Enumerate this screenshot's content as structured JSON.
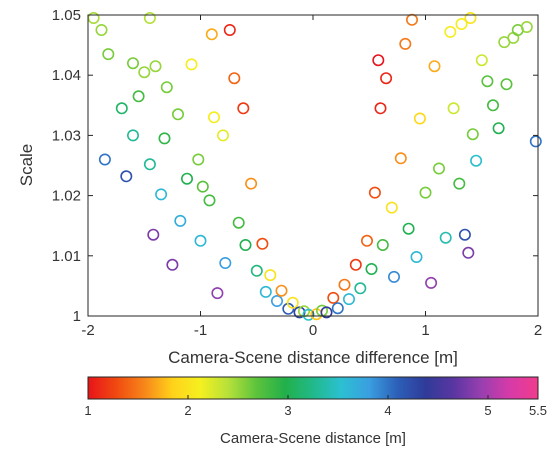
{
  "chart_data": {
    "type": "scatter",
    "title": "",
    "xlabel": "Camera-Scene distance difference [m]",
    "ylabel": "Scale",
    "xlim": [
      -2,
      2
    ],
    "ylim": [
      1,
      1.05
    ],
    "x_ticks": [
      -2,
      -1,
      0,
      1,
      2
    ],
    "x_tick_labels": [
      "-2",
      "-1",
      "0",
      "1",
      "2"
    ],
    "y_ticks": [
      1,
      1.01,
      1.02,
      1.03,
      1.04,
      1.05
    ],
    "y_tick_labels": [
      "1",
      "1.01",
      "1.02",
      "1.03",
      "1.04",
      "1.05"
    ],
    "marker": "open circle",
    "grid": false,
    "colorbar": {
      "label": "Camera-Scene distance [m]",
      "range": [
        1,
        5.5
      ],
      "ticks": [
        1,
        2,
        3,
        4,
        5,
        5.5
      ],
      "tick_labels": [
        "1",
        "2",
        "3",
        "4",
        "5",
        "5.5"
      ],
      "colormap": [
        "#e8141b",
        "#f04a10",
        "#f7861a",
        "#ffd21a",
        "#f5f020",
        "#b4e03a",
        "#5cc33c",
        "#22b04a",
        "#21b98a",
        "#2bc0d2",
        "#3a9ee0",
        "#2c5fb8",
        "#2f3b99",
        "#5a36a2",
        "#9a3fb0",
        "#d73aa8",
        "#f03c8c"
      ]
    },
    "points": [
      {
        "x": -1.95,
        "y": 1.0495,
        "c": 2.45
      },
      {
        "x": -1.82,
        "y": 1.0435,
        "c": 2.6
      },
      {
        "x": -1.88,
        "y": 1.0475,
        "c": 2.5
      },
      {
        "x": -1.85,
        "y": 1.026,
        "c": 4.0
      },
      {
        "x": -1.7,
        "y": 1.0345,
        "c": 3.1
      },
      {
        "x": -1.66,
        "y": 1.0232,
        "c": 4.2
      },
      {
        "x": -1.6,
        "y": 1.03,
        "c": 3.3
      },
      {
        "x": -1.6,
        "y": 1.042,
        "c": 2.6
      },
      {
        "x": -1.55,
        "y": 1.0365,
        "c": 2.8
      },
      {
        "x": -1.5,
        "y": 1.0405,
        "c": 2.5
      },
      {
        "x": -1.45,
        "y": 1.0495,
        "c": 2.4
      },
      {
        "x": -1.45,
        "y": 1.0252,
        "c": 3.3
      },
      {
        "x": -1.42,
        "y": 1.0135,
        "c": 4.8
      },
      {
        "x": -1.4,
        "y": 1.0415,
        "c": 2.5
      },
      {
        "x": -1.35,
        "y": 1.0202,
        "c": 3.6
      },
      {
        "x": -1.32,
        "y": 1.0295,
        "c": 2.9
      },
      {
        "x": -1.3,
        "y": 1.038,
        "c": 2.6
      },
      {
        "x": -1.25,
        "y": 1.0085,
        "c": 4.8
      },
      {
        "x": -1.2,
        "y": 1.0335,
        "c": 2.6
      },
      {
        "x": -1.18,
        "y": 1.0158,
        "c": 3.7
      },
      {
        "x": -1.12,
        "y": 1.0228,
        "c": 3.0
      },
      {
        "x": -1.08,
        "y": 1.0418,
        "c": 2.1
      },
      {
        "x": -1.02,
        "y": 1.026,
        "c": 2.6
      },
      {
        "x": -1.0,
        "y": 1.0125,
        "c": 3.6
      },
      {
        "x": -0.98,
        "y": 1.0215,
        "c": 2.7
      },
      {
        "x": -0.92,
        "y": 1.0192,
        "c": 2.8
      },
      {
        "x": -0.9,
        "y": 1.0468,
        "c": 1.7
      },
      {
        "x": -0.88,
        "y": 1.033,
        "c": 2.1
      },
      {
        "x": -0.85,
        "y": 1.0038,
        "c": 4.9
      },
      {
        "x": -0.8,
        "y": 1.03,
        "c": 2.2
      },
      {
        "x": -0.78,
        "y": 1.0088,
        "c": 3.8
      },
      {
        "x": -0.74,
        "y": 1.0475,
        "c": 1.1
      },
      {
        "x": -0.7,
        "y": 1.0395,
        "c": 1.4
      },
      {
        "x": -0.66,
        "y": 1.0155,
        "c": 2.8
      },
      {
        "x": -0.62,
        "y": 1.0345,
        "c": 1.2
      },
      {
        "x": -0.6,
        "y": 1.0118,
        "c": 3.0
      },
      {
        "x": -0.55,
        "y": 1.022,
        "c": 1.6
      },
      {
        "x": -0.5,
        "y": 1.0075,
        "c": 3.2
      },
      {
        "x": -0.45,
        "y": 1.012,
        "c": 1.3
      },
      {
        "x": -0.42,
        "y": 1.004,
        "c": 3.6
      },
      {
        "x": -0.38,
        "y": 1.0068,
        "c": 2.0
      },
      {
        "x": -0.32,
        "y": 1.0025,
        "c": 3.8
      },
      {
        "x": -0.28,
        "y": 1.0042,
        "c": 1.6
      },
      {
        "x": -0.22,
        "y": 1.0012,
        "c": 4.1
      },
      {
        "x": -0.18,
        "y": 1.0022,
        "c": 2.0
      },
      {
        "x": -0.12,
        "y": 1.0006,
        "c": 4.3
      },
      {
        "x": -0.08,
        "y": 1.0008,
        "c": 2.5
      },
      {
        "x": -0.04,
        "y": 1.0002,
        "c": 3.5
      },
      {
        "x": 0.03,
        "y": 1.0003,
        "c": 1.8
      },
      {
        "x": 0.08,
        "y": 1.0009,
        "c": 2.6
      },
      {
        "x": 0.12,
        "y": 1.0006,
        "c": 4.4
      },
      {
        "x": 0.18,
        "y": 1.003,
        "c": 1.3
      },
      {
        "x": 0.22,
        "y": 1.0013,
        "c": 4.0
      },
      {
        "x": 0.28,
        "y": 1.0052,
        "c": 1.5
      },
      {
        "x": 0.32,
        "y": 1.0028,
        "c": 3.6
      },
      {
        "x": 0.38,
        "y": 1.0085,
        "c": 1.2
      },
      {
        "x": 0.42,
        "y": 1.0046,
        "c": 3.3
      },
      {
        "x": 0.48,
        "y": 1.0125,
        "c": 1.4
      },
      {
        "x": 0.52,
        "y": 1.0078,
        "c": 3.0
      },
      {
        "x": 0.55,
        "y": 1.0205,
        "c": 1.3
      },
      {
        "x": 0.58,
        "y": 1.0425,
        "c": 1.0
      },
      {
        "x": 0.6,
        "y": 1.0345,
        "c": 1.1
      },
      {
        "x": 0.62,
        "y": 1.0118,
        "c": 2.8
      },
      {
        "x": 0.65,
        "y": 1.0395,
        "c": 1.1
      },
      {
        "x": 0.7,
        "y": 1.018,
        "c": 2.0
      },
      {
        "x": 0.72,
        "y": 1.0065,
        "c": 3.9
      },
      {
        "x": 0.78,
        "y": 1.0262,
        "c": 1.6
      },
      {
        "x": 0.82,
        "y": 1.0452,
        "c": 1.5
      },
      {
        "x": 0.85,
        "y": 1.0145,
        "c": 3.0
      },
      {
        "x": 0.88,
        "y": 1.0492,
        "c": 1.5
      },
      {
        "x": 0.92,
        "y": 1.0098,
        "c": 3.6
      },
      {
        "x": 0.95,
        "y": 1.0328,
        "c": 1.9
      },
      {
        "x": 1.0,
        "y": 1.0205,
        "c": 2.6
      },
      {
        "x": 1.05,
        "y": 1.0055,
        "c": 4.9
      },
      {
        "x": 1.08,
        "y": 1.0415,
        "c": 1.7
      },
      {
        "x": 1.12,
        "y": 1.0245,
        "c": 2.6
      },
      {
        "x": 1.18,
        "y": 1.013,
        "c": 3.4
      },
      {
        "x": 1.22,
        "y": 1.0472,
        "c": 2.1
      },
      {
        "x": 1.25,
        "y": 1.0345,
        "c": 2.3
      },
      {
        "x": 1.3,
        "y": 1.022,
        "c": 2.8
      },
      {
        "x": 1.32,
        "y": 1.0485,
        "c": 2.1
      },
      {
        "x": 1.35,
        "y": 1.0135,
        "c": 4.2
      },
      {
        "x": 1.38,
        "y": 1.0105,
        "c": 4.8
      },
      {
        "x": 1.4,
        "y": 1.0495,
        "c": 2.0
      },
      {
        "x": 1.42,
        "y": 1.0302,
        "c": 2.6
      },
      {
        "x": 1.45,
        "y": 1.0258,
        "c": 3.5
      },
      {
        "x": 1.5,
        "y": 1.0425,
        "c": 2.3
      },
      {
        "x": 1.55,
        "y": 1.039,
        "c": 2.7
      },
      {
        "x": 1.6,
        "y": 1.035,
        "c": 2.8
      },
      {
        "x": 1.65,
        "y": 1.0312,
        "c": 3.0
      },
      {
        "x": 1.7,
        "y": 1.0455,
        "c": 2.5
      },
      {
        "x": 1.72,
        "y": 1.0385,
        "c": 2.7
      },
      {
        "x": 1.78,
        "y": 1.0462,
        "c": 2.5
      },
      {
        "x": 1.82,
        "y": 1.0475,
        "c": 2.6
      },
      {
        "x": 1.9,
        "y": 1.048,
        "c": 2.5
      },
      {
        "x": 1.98,
        "y": 1.029,
        "c": 4.0
      }
    ]
  }
}
